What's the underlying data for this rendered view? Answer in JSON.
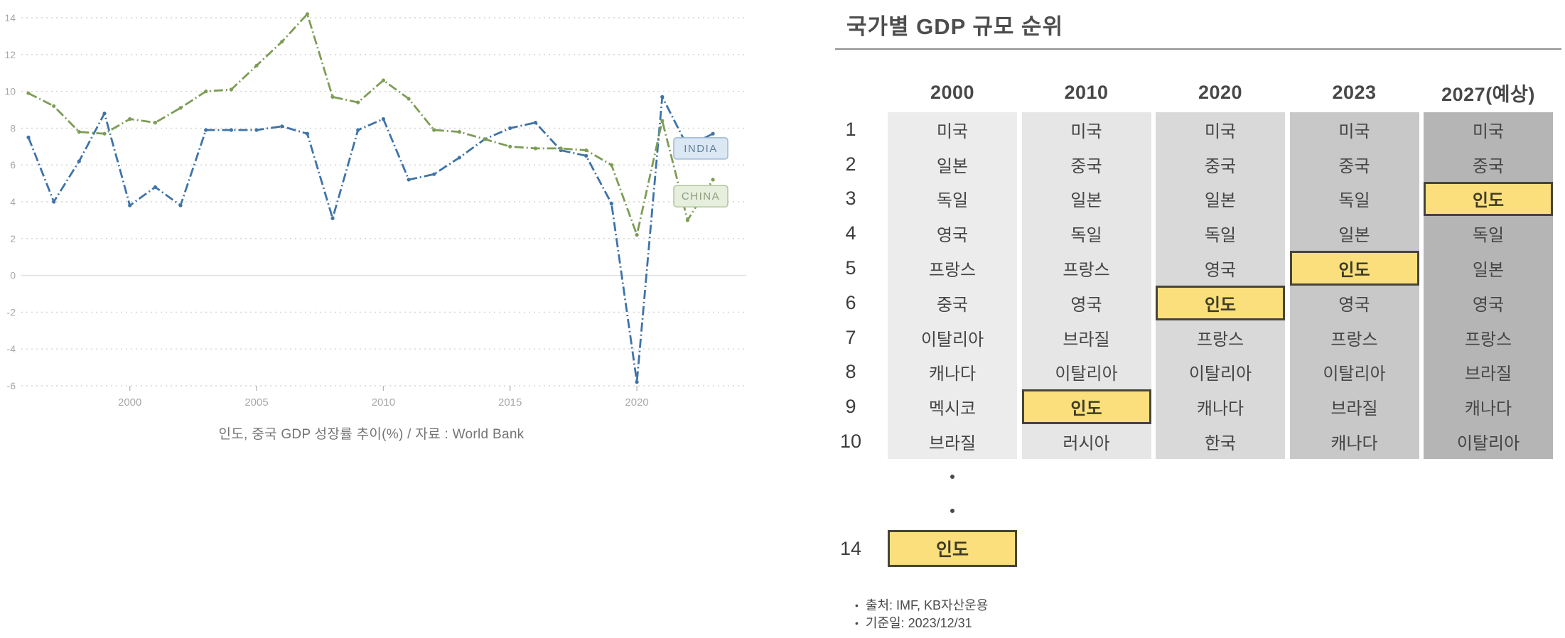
{
  "chart_data": [
    {
      "type": "line",
      "title": "인도, 중국 GDP 성장률 추이(%) / 자료 : World Bank",
      "x": [
        1996,
        1997,
        1998,
        1999,
        2000,
        2001,
        2002,
        2003,
        2004,
        2005,
        2006,
        2007,
        2008,
        2009,
        2010,
        2011,
        2012,
        2013,
        2014,
        2015,
        2016,
        2017,
        2018,
        2019,
        2020,
        2021,
        2022,
        2023
      ],
      "series": [
        {
          "name": "INDIA",
          "color": "#3e73a8",
          "label_bg": "#dbe8f4",
          "label_border": "#9ab8d4",
          "label_text_color": "#64819c",
          "label_y": 6.9,
          "values": [
            7.5,
            4.0,
            6.2,
            8.8,
            3.8,
            4.8,
            3.8,
            7.9,
            7.9,
            7.9,
            8.1,
            7.7,
            3.1,
            7.9,
            8.5,
            5.2,
            5.5,
            6.4,
            7.4,
            8.0,
            8.3,
            6.8,
            6.5,
            3.9,
            -5.8,
            9.7,
            7.0,
            7.7
          ]
        },
        {
          "name": "CHINA",
          "color": "#7d9d55",
          "label_bg": "#e6eedd",
          "label_border": "#afc598",
          "label_text_color": "#8d9c7c",
          "label_y": 4.3,
          "values": [
            9.9,
            9.2,
            7.8,
            7.7,
            8.5,
            8.3,
            9.1,
            10.0,
            10.1,
            11.4,
            12.7,
            14.2,
            9.7,
            9.4,
            10.6,
            9.6,
            7.9,
            7.8,
            7.4,
            7.0,
            6.9,
            6.9,
            6.8,
            6.0,
            2.2,
            8.4,
            3.0,
            5.2
          ]
        }
      ],
      "ylim": [
        -6,
        14
      ],
      "yticks": [
        14,
        12,
        10,
        8,
        6,
        4,
        2,
        0,
        -2,
        -4,
        -6
      ],
      "xticks": [
        2000,
        2005,
        2010,
        2015,
        2020
      ],
      "grid": "horizontal-dotted, zero-line solid",
      "legend_position": "inline-right-end-labels"
    },
    {
      "type": "table",
      "title": "국가별 GDP 규모 순위",
      "columns": [
        "2000",
        "2010",
        "2020",
        "2023",
        "2027(예상)"
      ],
      "column_shades": [
        "#ececec",
        "#e6e6e6",
        "#d9d9d9",
        "#c8c8c8",
        "#b5b5b5"
      ],
      "ranks": [
        "1",
        "2",
        "3",
        "4",
        "5",
        "6",
        "7",
        "8",
        "9",
        "10"
      ],
      "rows": [
        [
          "미국",
          "미국",
          "미국",
          "미국",
          "미국"
        ],
        [
          "일본",
          "중국",
          "중국",
          "중국",
          "중국"
        ],
        [
          "독일",
          "일본",
          "일본",
          "독일",
          "인도"
        ],
        [
          "영국",
          "독일",
          "독일",
          "일본",
          "독일"
        ],
        [
          "프랑스",
          "프랑스",
          "영국",
          "인도",
          "일본"
        ],
        [
          "중국",
          "영국",
          "인도",
          "영국",
          "영국"
        ],
        [
          "이탈리아",
          "브라질",
          "프랑스",
          "프랑스",
          "프랑스"
        ],
        [
          "캐나다",
          "이탈리아",
          "이탈리아",
          "이탈리아",
          "브라질"
        ],
        [
          "멕시코",
          "인도",
          "캐나다",
          "브라질",
          "캐나다"
        ],
        [
          "브라질",
          "러시아",
          "한국",
          "캐나다",
          "이탈리아"
        ]
      ],
      "highlighted_cells": [
        [
          2,
          4
        ],
        [
          4,
          3
        ],
        [
          5,
          2
        ],
        [
          8,
          1
        ]
      ],
      "highlight_style": {
        "fill": "#fbdf7d",
        "border": "#46453b"
      },
      "extra_row": {
        "rank": "14",
        "column": "2000",
        "value": "인도",
        "highlighted": true
      },
      "notes": [
        "출처: IMF, KB자산운용",
        "기준일: 2023/12/31"
      ]
    }
  ]
}
